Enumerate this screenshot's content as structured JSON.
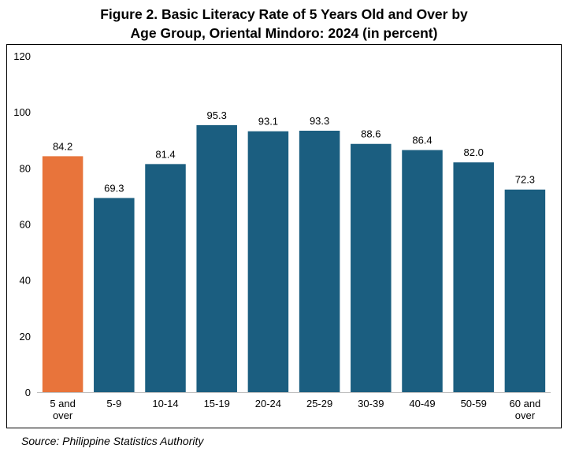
{
  "title_line1": "Figure 2. Basic Literacy Rate of 5 Years Old and Over by",
  "title_line2": "Age Group, Oriental Mindoro: 2024 (in percent)",
  "source": "Source: Philippine Statistics Authority",
  "chart_data": {
    "type": "bar",
    "categories": [
      [
        "5 and",
        "over"
      ],
      [
        "5-9"
      ],
      [
        "10-14"
      ],
      [
        "15-19"
      ],
      [
        "20-24"
      ],
      [
        "25-29"
      ],
      [
        "30-39"
      ],
      [
        "40-49"
      ],
      [
        "50-59"
      ],
      [
        "60 and",
        "over"
      ]
    ],
    "values": [
      84.2,
      69.3,
      81.4,
      95.3,
      93.1,
      93.3,
      88.6,
      86.4,
      82.0,
      72.3
    ],
    "value_labels": [
      "84.2",
      "69.3",
      "81.4",
      "95.3",
      "93.1",
      "93.3",
      "88.6",
      "86.4",
      "82.0",
      "72.3"
    ],
    "ylim": [
      0,
      120
    ],
    "yticks": [
      "0",
      "20",
      "40",
      "60",
      "80",
      "100",
      "120"
    ],
    "colors": {
      "highlight": "#E8743B",
      "bar": "#1B5E80"
    },
    "highlight_index": 0,
    "grid": false,
    "legend": "none"
  }
}
